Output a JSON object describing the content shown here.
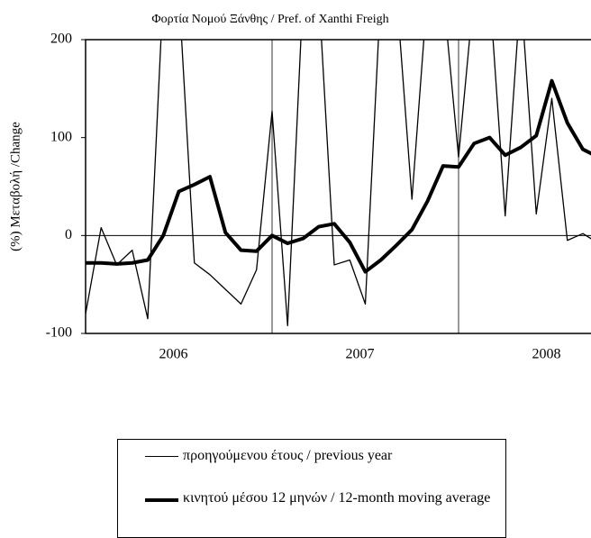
{
  "chart_data": {
    "type": "line",
    "title": "Φορτία Νομού Ξάνθης  / Pref. of  Xanthi  Freigh",
    "y_label": "(%) Μεταβολή /Change",
    "categories": [
      null,
      null,
      null,
      null,
      null,
      null,
      "2006",
      null,
      null,
      null,
      null,
      null,
      null,
      null,
      null,
      null,
      null,
      null,
      "2007",
      null,
      null,
      null,
      null,
      null,
      null,
      null,
      null,
      null,
      null,
      null,
      "2008",
      null,
      null,
      null
    ],
    "series": [
      {
        "name": "προηγούμενου έτους / previous year",
        "color": "#000000",
        "width": 1.3,
        "values": [
          -80,
          8,
          -30,
          -15,
          -85,
          250,
          250,
          -28,
          -40,
          -55,
          -70,
          -35,
          127,
          -92,
          250,
          250,
          -30,
          -25,
          -70,
          250,
          250,
          37,
          250,
          250,
          80,
          250,
          250,
          20,
          250,
          22,
          140,
          -5,
          2,
          -8
        ]
      },
      {
        "name": "κινητού μέσου 12 μηνών / 12-month moving average",
        "color": "#000000",
        "width": 4,
        "values": [
          -28,
          -28,
          -29,
          -28,
          -25,
          0,
          45,
          52,
          60,
          3,
          -15,
          -16,
          0,
          -8,
          -3,
          9,
          12,
          -7,
          -37,
          -25,
          -10,
          6,
          35,
          71,
          70,
          94,
          100,
          82,
          90,
          102,
          158,
          115,
          88,
          80
        ]
      }
    ],
    "ylim": [
      -100,
      200
    ],
    "yticks": [
      -100,
      0,
      100,
      200
    ]
  }
}
